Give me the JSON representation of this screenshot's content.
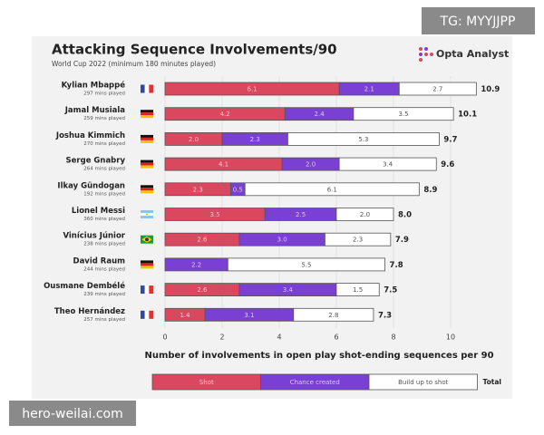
{
  "watermarks": [
    "TG: MYYJJPP",
    "hero-weilai.com"
  ],
  "chart_data": {
    "type": "stacked-bar-horizontal",
    "title": "Attacking Sequence Involvements/90",
    "subtitle": "World Cup 2022 (minimum 180 minutes played)",
    "brand": "Opta Analyst",
    "x_label": "Number of involvements in open play shot-ending sequences per 90",
    "categories": [
      "Kylian Mbappé",
      "Jamal Musiala",
      "Joshua Kimmich",
      "Serge Gnabry",
      "Ilkay Gündogan",
      "Lionel Messi",
      "Vinícius Júnior",
      "David Raum",
      "Ousmane Dembélé",
      "Theo Hernández"
    ],
    "category_subtitles": [
      "297 mins played",
      "259 mins played",
      "270 mins played",
      "264 mins played",
      "192 mins played",
      "360 mins played",
      "238 mins played",
      "244 mins played",
      "239 mins played",
      "257 mins played"
    ],
    "series": [
      {
        "name": "Shot",
        "color": "#d9485f",
        "label_color": "#f6c9d0",
        "values": [
          6.1,
          4.2,
          2.0,
          4.1,
          2.3,
          3.5,
          2.6,
          0,
          2.6,
          1.4
        ],
        "value_labels": [
          "6.1",
          "4.2",
          "2.0",
          "4.1",
          "2.3",
          "3.5",
          "2.6",
          null,
          "2.6",
          "1.4"
        ]
      },
      {
        "name": "Chance created",
        "color": "#7a3fd3",
        "label_color": "#dccbf5",
        "values": [
          2.1,
          2.4,
          2.3,
          2.0,
          0.5,
          2.5,
          3.0,
          2.2,
          3.4,
          3.1
        ],
        "value_labels": [
          "2.1",
          "2.4",
          "2.3",
          "2.0",
          "0.5",
          "2.5",
          "3.0",
          "2.2",
          "3.4",
          "3.1"
        ]
      },
      {
        "name": "Build up to shot",
        "color": "#ffffff",
        "label_color": "#555555",
        "values": [
          2.7,
          3.5,
          5.3,
          3.4,
          6.1,
          2.0,
          2.3,
          5.5,
          1.5,
          2.8
        ],
        "value_labels": [
          "2.7",
          "3.5",
          "5.3",
          "3.4",
          "6.1",
          "2.0",
          "2.3",
          "5.5",
          "1.5",
          "2.8"
        ]
      }
    ],
    "totals": {
      "name": "Total",
      "values": [
        10.9,
        10.1,
        9.7,
        9.6,
        8.9,
        8.0,
        7.9,
        7.8,
        7.5,
        7.3
      ],
      "value_labels": [
        "10.9",
        "10.1",
        "9.7",
        "9.6",
        "8.9",
        "8.0",
        "7.9",
        "7.8",
        "7.5",
        "7.3"
      ]
    },
    "xlim": [
      0,
      11
    ],
    "xticks": [
      0,
      2,
      4,
      6,
      8,
      10
    ],
    "grid": true
  }
}
